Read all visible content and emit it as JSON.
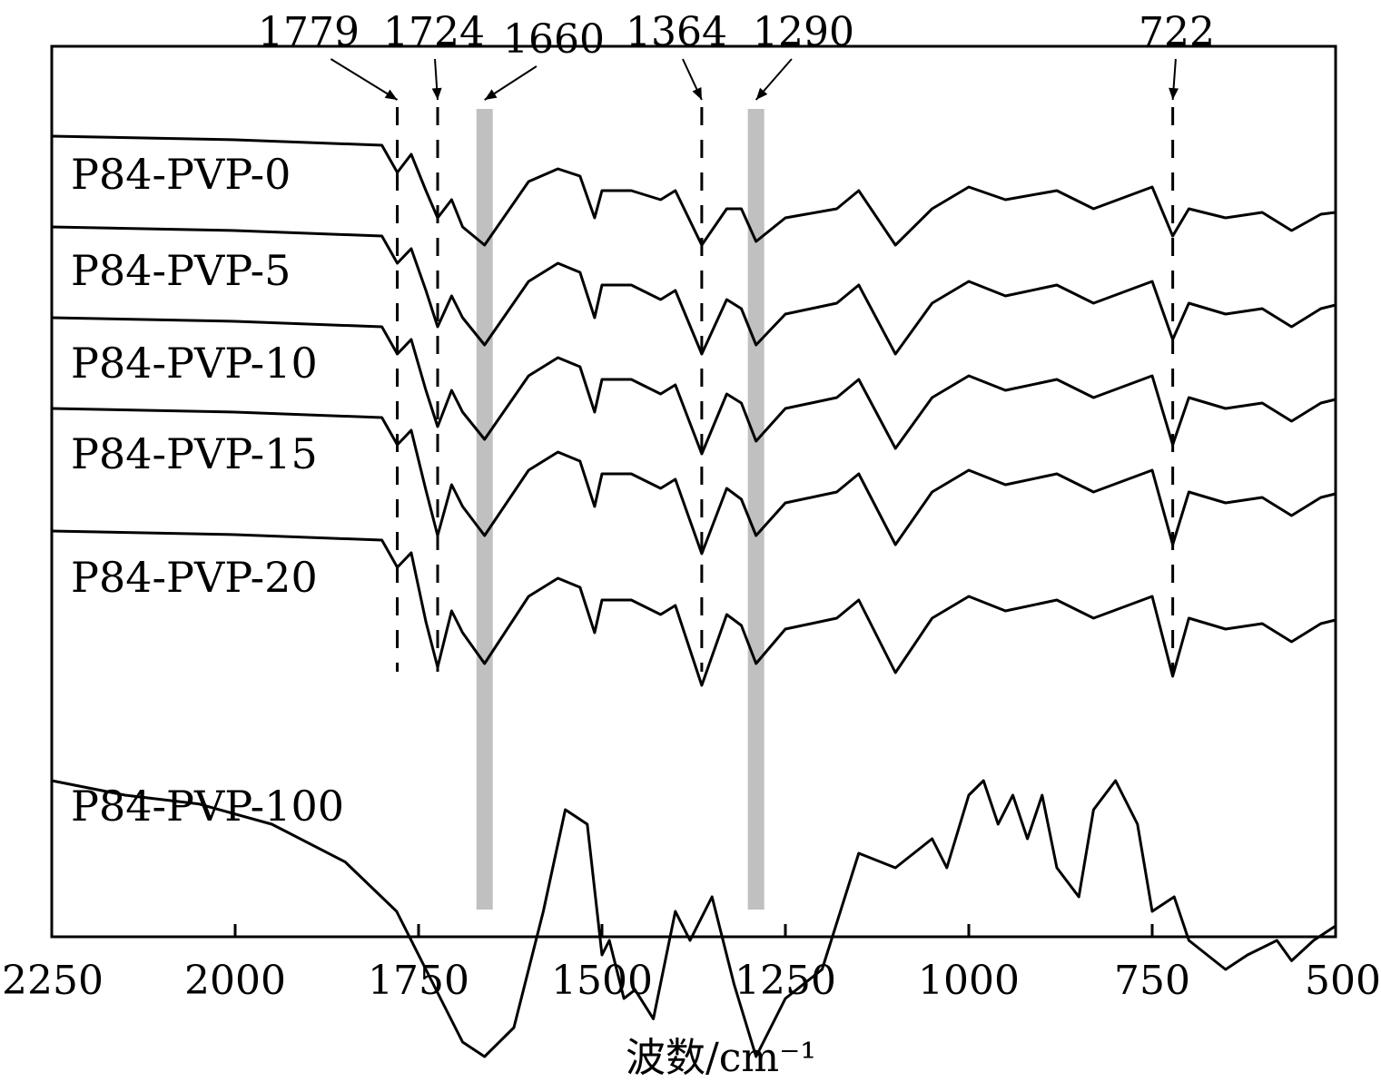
{
  "chart_data": {
    "type": "line",
    "title": "",
    "xlabel": "波数/cm⁻¹",
    "ylabel": "",
    "xlim": [
      2250,
      500
    ],
    "x_reversed": true,
    "x_ticks": [
      2250,
      2000,
      1750,
      1500,
      1250,
      1000,
      750,
      500
    ],
    "grid": false,
    "legend": "labels-inline-left",
    "series_color": "#000000",
    "highlight_band_color": "#c0c0c0",
    "highlight_bands": [
      1660,
      1290
    ],
    "annotations": [
      {
        "label": "1779",
        "x": 1779
      },
      {
        "label": "1724",
        "x": 1724
      },
      {
        "label": "1660",
        "x": 1660
      },
      {
        "label": "1364",
        "x": 1364
      },
      {
        "label": "1290",
        "x": 1290
      },
      {
        "label": "722",
        "x": 722
      }
    ],
    "series": [
      {
        "name": "P84-PVP-0",
        "baseline": 0.9,
        "points": [
          [
            2250,
            1.0
          ],
          [
            2000,
            0.98
          ],
          [
            1800,
            0.95
          ],
          [
            1779,
            0.8
          ],
          [
            1760,
            0.9
          ],
          [
            1740,
            0.7
          ],
          [
            1724,
            0.55
          ],
          [
            1705,
            0.65
          ],
          [
            1690,
            0.5
          ],
          [
            1660,
            0.4
          ],
          [
            1600,
            0.75
          ],
          [
            1560,
            0.82
          ],
          [
            1530,
            0.78
          ],
          [
            1510,
            0.55
          ],
          [
            1500,
            0.7
          ],
          [
            1460,
            0.7
          ],
          [
            1420,
            0.65
          ],
          [
            1400,
            0.7
          ],
          [
            1364,
            0.4
          ],
          [
            1330,
            0.6
          ],
          [
            1310,
            0.6
          ],
          [
            1290,
            0.42
          ],
          [
            1250,
            0.55
          ],
          [
            1180,
            0.6
          ],
          [
            1150,
            0.7
          ],
          [
            1100,
            0.4
          ],
          [
            1050,
            0.6
          ],
          [
            1000,
            0.72
          ],
          [
            950,
            0.65
          ],
          [
            880,
            0.7
          ],
          [
            830,
            0.6
          ],
          [
            750,
            0.72
          ],
          [
            722,
            0.45
          ],
          [
            700,
            0.6
          ],
          [
            650,
            0.55
          ],
          [
            600,
            0.58
          ],
          [
            560,
            0.48
          ],
          [
            520,
            0.57
          ],
          [
            500,
            0.58
          ]
        ]
      },
      {
        "name": "P84-PVP-5",
        "baseline": 0.9,
        "points": [
          [
            2250,
            1.0
          ],
          [
            2000,
            0.98
          ],
          [
            1800,
            0.95
          ],
          [
            1779,
            0.8
          ],
          [
            1760,
            0.88
          ],
          [
            1740,
            0.65
          ],
          [
            1724,
            0.45
          ],
          [
            1705,
            0.62
          ],
          [
            1690,
            0.5
          ],
          [
            1660,
            0.35
          ],
          [
            1600,
            0.7
          ],
          [
            1560,
            0.8
          ],
          [
            1530,
            0.75
          ],
          [
            1510,
            0.5
          ],
          [
            1500,
            0.68
          ],
          [
            1460,
            0.68
          ],
          [
            1420,
            0.6
          ],
          [
            1400,
            0.65
          ],
          [
            1364,
            0.3
          ],
          [
            1330,
            0.6
          ],
          [
            1310,
            0.55
          ],
          [
            1290,
            0.35
          ],
          [
            1250,
            0.52
          ],
          [
            1180,
            0.58
          ],
          [
            1150,
            0.68
          ],
          [
            1100,
            0.3
          ],
          [
            1050,
            0.58
          ],
          [
            1000,
            0.7
          ],
          [
            950,
            0.62
          ],
          [
            880,
            0.68
          ],
          [
            830,
            0.58
          ],
          [
            750,
            0.7
          ],
          [
            722,
            0.38
          ],
          [
            700,
            0.58
          ],
          [
            650,
            0.52
          ],
          [
            600,
            0.55
          ],
          [
            560,
            0.45
          ],
          [
            520,
            0.55
          ],
          [
            500,
            0.57
          ]
        ]
      },
      {
        "name": "P84-PVP-10",
        "baseline": 0.9,
        "points": [
          [
            2250,
            1.0
          ],
          [
            2000,
            0.98
          ],
          [
            1800,
            0.95
          ],
          [
            1779,
            0.8
          ],
          [
            1760,
            0.88
          ],
          [
            1740,
            0.6
          ],
          [
            1724,
            0.4
          ],
          [
            1705,
            0.6
          ],
          [
            1690,
            0.48
          ],
          [
            1660,
            0.33
          ],
          [
            1600,
            0.68
          ],
          [
            1560,
            0.78
          ],
          [
            1530,
            0.73
          ],
          [
            1510,
            0.48
          ],
          [
            1500,
            0.66
          ],
          [
            1460,
            0.66
          ],
          [
            1420,
            0.58
          ],
          [
            1400,
            0.63
          ],
          [
            1364,
            0.25
          ],
          [
            1330,
            0.58
          ],
          [
            1310,
            0.53
          ],
          [
            1290,
            0.32
          ],
          [
            1250,
            0.5
          ],
          [
            1180,
            0.56
          ],
          [
            1150,
            0.66
          ],
          [
            1100,
            0.28
          ],
          [
            1050,
            0.56
          ],
          [
            1000,
            0.68
          ],
          [
            950,
            0.6
          ],
          [
            880,
            0.66
          ],
          [
            830,
            0.56
          ],
          [
            750,
            0.68
          ],
          [
            722,
            0.3
          ],
          [
            700,
            0.56
          ],
          [
            650,
            0.5
          ],
          [
            600,
            0.53
          ],
          [
            560,
            0.43
          ],
          [
            520,
            0.53
          ],
          [
            500,
            0.55
          ]
        ]
      },
      {
        "name": "P84-PVP-15",
        "baseline": 0.9,
        "points": [
          [
            2250,
            1.0
          ],
          [
            2000,
            0.98
          ],
          [
            1800,
            0.95
          ],
          [
            1779,
            0.8
          ],
          [
            1760,
            0.88
          ],
          [
            1740,
            0.55
          ],
          [
            1724,
            0.3
          ],
          [
            1705,
            0.58
          ],
          [
            1690,
            0.46
          ],
          [
            1660,
            0.3
          ],
          [
            1600,
            0.66
          ],
          [
            1560,
            0.76
          ],
          [
            1530,
            0.71
          ],
          [
            1510,
            0.46
          ],
          [
            1500,
            0.64
          ],
          [
            1460,
            0.64
          ],
          [
            1420,
            0.56
          ],
          [
            1400,
            0.61
          ],
          [
            1364,
            0.2
          ],
          [
            1330,
            0.56
          ],
          [
            1310,
            0.5
          ],
          [
            1290,
            0.3
          ],
          [
            1250,
            0.48
          ],
          [
            1180,
            0.54
          ],
          [
            1150,
            0.64
          ],
          [
            1100,
            0.25
          ],
          [
            1050,
            0.54
          ],
          [
            1000,
            0.66
          ],
          [
            950,
            0.58
          ],
          [
            880,
            0.64
          ],
          [
            830,
            0.54
          ],
          [
            750,
            0.66
          ],
          [
            722,
            0.25
          ],
          [
            700,
            0.54
          ],
          [
            650,
            0.48
          ],
          [
            600,
            0.51
          ],
          [
            560,
            0.41
          ],
          [
            520,
            0.51
          ],
          [
            500,
            0.53
          ]
        ]
      },
      {
        "name": "P84-PVP-20",
        "baseline": 0.9,
        "points": [
          [
            2250,
            1.0
          ],
          [
            2000,
            0.98
          ],
          [
            1800,
            0.95
          ],
          [
            1779,
            0.8
          ],
          [
            1760,
            0.88
          ],
          [
            1740,
            0.5
          ],
          [
            1724,
            0.25
          ],
          [
            1705,
            0.56
          ],
          [
            1690,
            0.44
          ],
          [
            1660,
            0.27
          ],
          [
            1600,
            0.64
          ],
          [
            1560,
            0.74
          ],
          [
            1530,
            0.69
          ],
          [
            1510,
            0.44
          ],
          [
            1500,
            0.62
          ],
          [
            1460,
            0.62
          ],
          [
            1420,
            0.54
          ],
          [
            1400,
            0.59
          ],
          [
            1364,
            0.15
          ],
          [
            1330,
            0.54
          ],
          [
            1310,
            0.48
          ],
          [
            1290,
            0.27
          ],
          [
            1250,
            0.46
          ],
          [
            1180,
            0.52
          ],
          [
            1150,
            0.62
          ],
          [
            1100,
            0.22
          ],
          [
            1050,
            0.52
          ],
          [
            1000,
            0.64
          ],
          [
            950,
            0.56
          ],
          [
            880,
            0.62
          ],
          [
            830,
            0.52
          ],
          [
            750,
            0.64
          ],
          [
            722,
            0.2
          ],
          [
            700,
            0.52
          ],
          [
            650,
            0.46
          ],
          [
            600,
            0.49
          ],
          [
            560,
            0.39
          ],
          [
            520,
            0.49
          ],
          [
            500,
            0.51
          ]
        ]
      },
      {
        "name": "P84-PVP-100",
        "baseline": 0.9,
        "points": [
          [
            2250,
            1.0
          ],
          [
            2150,
            0.95
          ],
          [
            2050,
            0.92
          ],
          [
            1950,
            0.85
          ],
          [
            1850,
            0.72
          ],
          [
            1780,
            0.55
          ],
          [
            1720,
            0.25
          ],
          [
            1690,
            0.1
          ],
          [
            1660,
            0.05
          ],
          [
            1620,
            0.15
          ],
          [
            1580,
            0.55
          ],
          [
            1550,
            0.9
          ],
          [
            1520,
            0.85
          ],
          [
            1500,
            0.4
          ],
          [
            1490,
            0.45
          ],
          [
            1470,
            0.25
          ],
          [
            1455,
            0.28
          ],
          [
            1430,
            0.18
          ],
          [
            1400,
            0.55
          ],
          [
            1380,
            0.45
          ],
          [
            1350,
            0.6
          ],
          [
            1320,
            0.3
          ],
          [
            1290,
            0.05
          ],
          [
            1250,
            0.25
          ],
          [
            1200,
            0.35
          ],
          [
            1150,
            0.75
          ],
          [
            1100,
            0.7
          ],
          [
            1050,
            0.8
          ],
          [
            1030,
            0.7
          ],
          [
            1000,
            0.95
          ],
          [
            980,
            1.0
          ],
          [
            960,
            0.85
          ],
          [
            940,
            0.95
          ],
          [
            920,
            0.8
          ],
          [
            900,
            0.95
          ],
          [
            880,
            0.7
          ],
          [
            850,
            0.6
          ],
          [
            830,
            0.9
          ],
          [
            800,
            1.0
          ],
          [
            770,
            0.85
          ],
          [
            750,
            0.55
          ],
          [
            720,
            0.6
          ],
          [
            700,
            0.45
          ],
          [
            650,
            0.35
          ],
          [
            620,
            0.4
          ],
          [
            580,
            0.45
          ],
          [
            560,
            0.38
          ],
          [
            530,
            0.45
          ],
          [
            500,
            0.5
          ]
        ]
      }
    ]
  }
}
